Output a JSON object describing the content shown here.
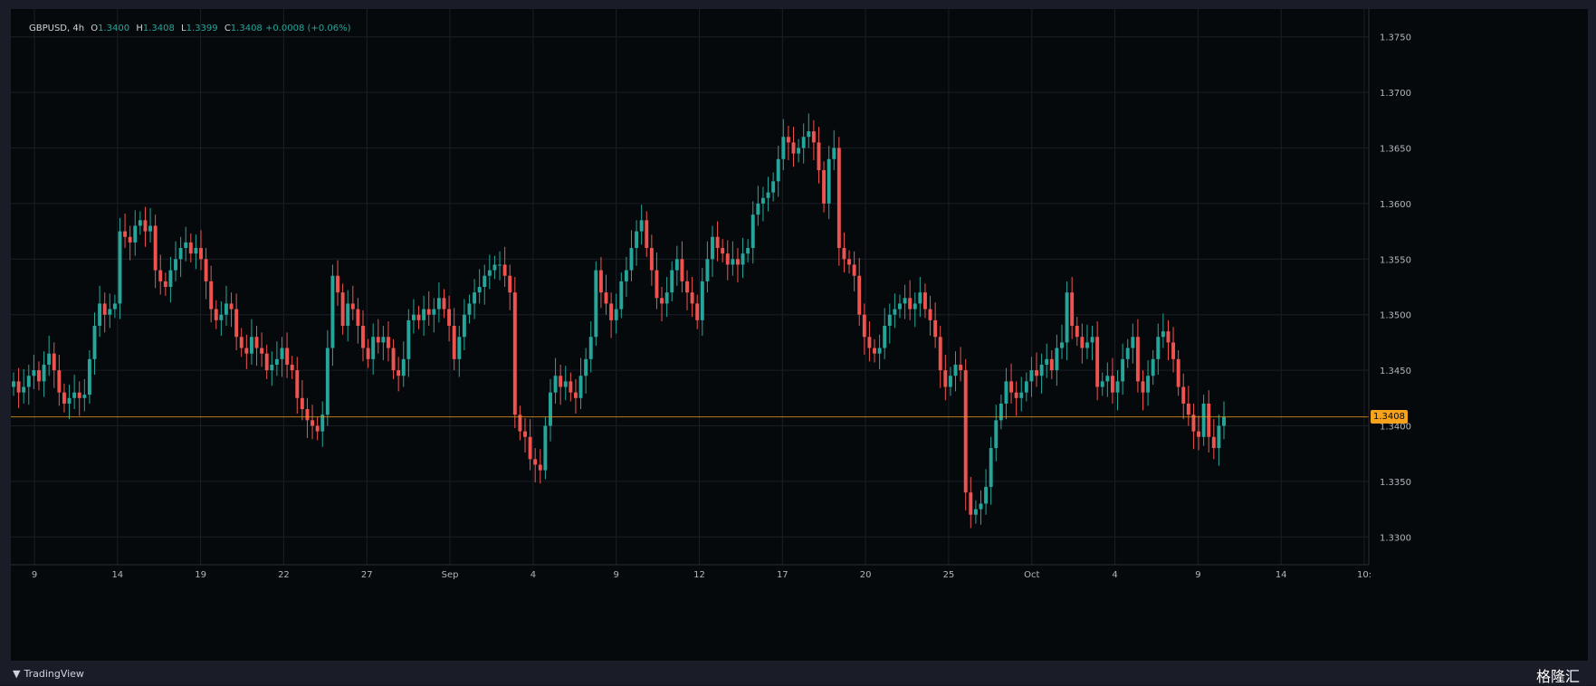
{
  "header": {
    "symbol": "GBPUSD, 4h",
    "o_label": "O",
    "o": "1.3400",
    "h_label": "H",
    "h": "1.3408",
    "l_label": "L",
    "l": "1.3399",
    "c_label": "C",
    "c": "1.3408",
    "change": "+0.0008 (+0.06%)"
  },
  "last_price": "1.3408",
  "branding": {
    "tradingview": "TradingView",
    "watermark": "格隆汇"
  },
  "colors": {
    "up": "#26a69a",
    "down": "#ef5350",
    "price_line": "#f7a21b",
    "bg": "#06090c",
    "grid": "#1a1f27"
  },
  "chart_data": {
    "type": "candlestick",
    "title": "",
    "ylim": [
      1.3275,
      1.3775
    ],
    "y_ticks": [
      "1.3300",
      "1.3350",
      "1.3400",
      "1.3450",
      "1.3500",
      "1.3550",
      "1.3600",
      "1.3650",
      "1.3700",
      "1.3750"
    ],
    "x_ticks": [
      "9",
      "14",
      "19",
      "22",
      "27",
      "Sep",
      "4",
      "9",
      "12",
      "17",
      "20",
      "25",
      "Oct",
      "4",
      "9",
      "14",
      "10:"
    ],
    "grid": true,
    "last_value": 1.3408,
    "closes": [
      1.344,
      1.343,
      1.3435,
      1.3445,
      1.345,
      1.344,
      1.3455,
      1.3465,
      1.345,
      1.343,
      1.342,
      1.3425,
      1.343,
      1.3425,
      1.3428,
      1.346,
      1.349,
      1.351,
      1.35,
      1.3505,
      1.351,
      1.3575,
      1.357,
      1.3565,
      1.358,
      1.3585,
      1.3575,
      1.358,
      1.354,
      1.353,
      1.3525,
      1.354,
      1.355,
      1.356,
      1.3565,
      1.3555,
      1.356,
      1.355,
      1.353,
      1.3505,
      1.3495,
      1.35,
      1.351,
      1.3505,
      1.348,
      1.347,
      1.3465,
      1.348,
      1.347,
      1.3465,
      1.345,
      1.3455,
      1.346,
      1.347,
      1.3455,
      1.345,
      1.3425,
      1.3415,
      1.3405,
      1.34,
      1.3395,
      1.341,
      1.347,
      1.3535,
      1.352,
      1.349,
      1.351,
      1.3505,
      1.349,
      1.347,
      1.346,
      1.348,
      1.3475,
      1.348,
      1.347,
      1.345,
      1.3445,
      1.346,
      1.3495,
      1.35,
      1.3495,
      1.3505,
      1.35,
      1.3505,
      1.3515,
      1.3505,
      1.349,
      1.346,
      1.348,
      1.35,
      1.351,
      1.352,
      1.3525,
      1.3535,
      1.354,
      1.3545,
      1.3545,
      1.3535,
      1.352,
      1.341,
      1.3395,
      1.339,
      1.337,
      1.3365,
      1.336,
      1.34,
      1.343,
      1.3445,
      1.3435,
      1.344,
      1.343,
      1.3425,
      1.3445,
      1.346,
      1.348,
      1.354,
      1.352,
      1.351,
      1.3495,
      1.3505,
      1.353,
      1.354,
      1.356,
      1.3575,
      1.3585,
      1.356,
      1.354,
      1.3515,
      1.351,
      1.352,
      1.354,
      1.355,
      1.353,
      1.352,
      1.351,
      1.3495,
      1.353,
      1.355,
      1.357,
      1.356,
      1.3555,
      1.3545,
      1.355,
      1.3545,
      1.3555,
      1.356,
      1.359,
      1.36,
      1.3605,
      1.361,
      1.362,
      1.364,
      1.366,
      1.3655,
      1.3645,
      1.365,
      1.366,
      1.3665,
      1.3655,
      1.363,
      1.36,
      1.364,
      1.365,
      1.356,
      1.355,
      1.3545,
      1.3535,
      1.35,
      1.348,
      1.347,
      1.3465,
      1.347,
      1.349,
      1.35,
      1.3505,
      1.351,
      1.3515,
      1.3505,
      1.351,
      1.352,
      1.3505,
      1.3495,
      1.348,
      1.345,
      1.3435,
      1.3445,
      1.3455,
      1.345,
      1.334,
      1.332,
      1.3325,
      1.333,
      1.3345,
      1.338,
      1.3405,
      1.342,
      1.344,
      1.343,
      1.3425,
      1.343,
      1.344,
      1.345,
      1.3445,
      1.3455,
      1.346,
      1.345,
      1.347,
      1.3475,
      1.352,
      1.349,
      1.348,
      1.347,
      1.3475,
      1.348,
      1.3435,
      1.344,
      1.3445,
      1.343,
      1.344,
      1.346,
      1.347,
      1.348,
      1.344,
      1.343,
      1.3445,
      1.346,
      1.348,
      1.3485,
      1.3475,
      1.346,
      1.3435,
      1.342,
      1.341,
      1.3395,
      1.339,
      1.342,
      1.339,
      1.338,
      1.34,
      1.3408
    ]
  }
}
